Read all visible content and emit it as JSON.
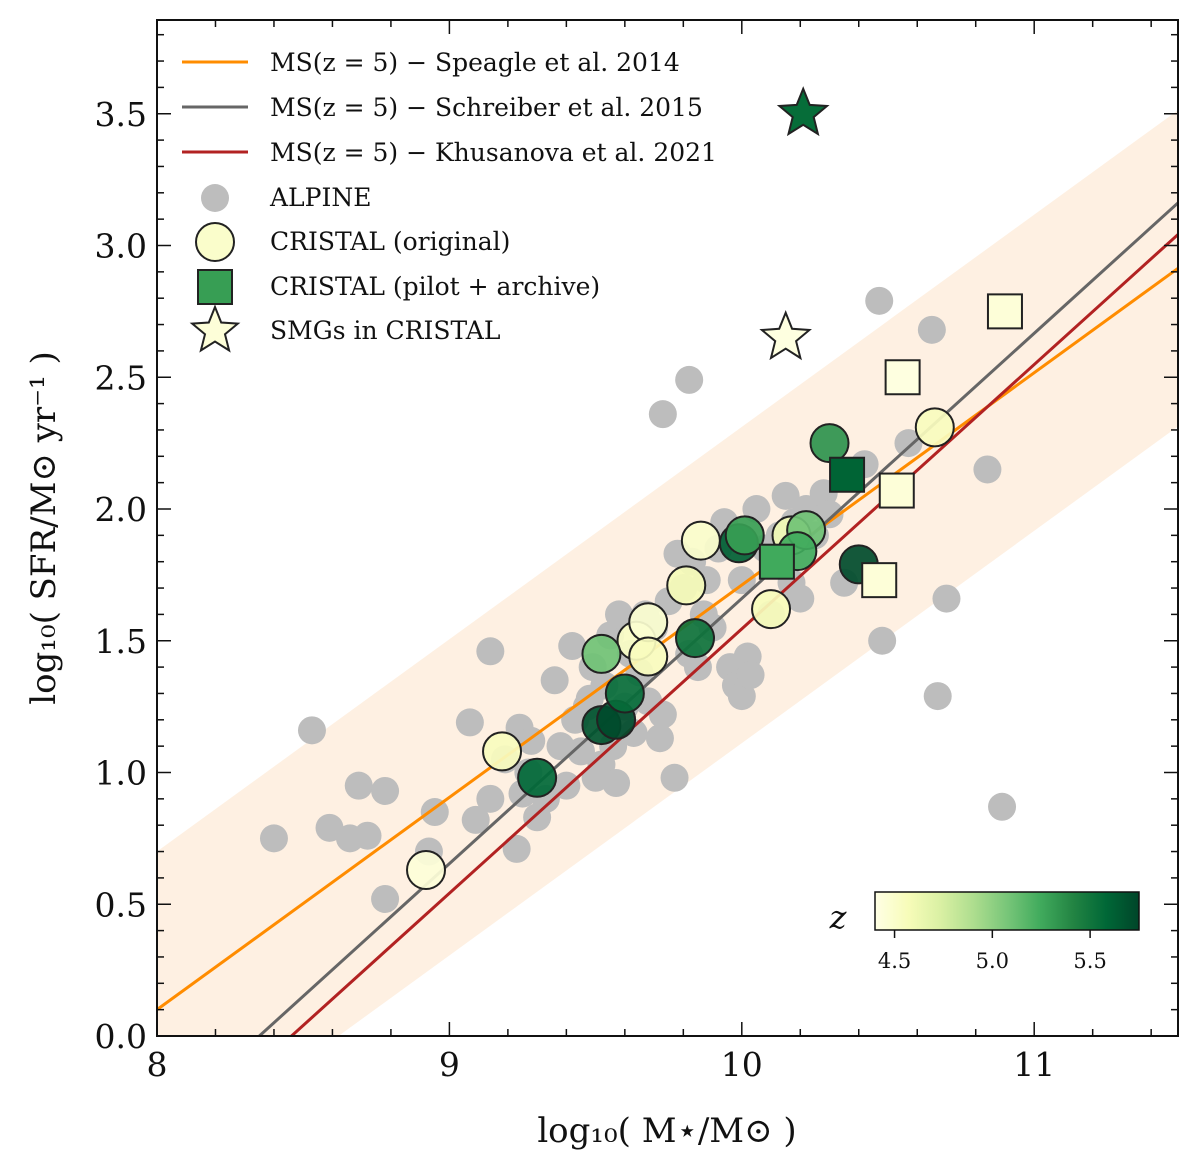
{
  "chart_data": {
    "type": "scatter",
    "xlabel": "log₁₀( M⋆/M⊙ )",
    "ylabel": "log₁₀( SFR/M⊙ yr⁻¹ )",
    "xlim": [
      8,
      11.5
    ],
    "ylim": [
      0,
      3.85
    ],
    "x_ticks": [
      "8",
      "9",
      "10",
      "11"
    ],
    "y_ticks": [
      "0.0",
      "0.5",
      "1.0",
      "1.5",
      "2.0",
      "2.5",
      "3.0",
      "3.5"
    ],
    "legend_position": "top-left",
    "scatter_band": {
      "center_series": "Speagle",
      "half_width_dex": 0.6,
      "color": "#fdebd8"
    },
    "lines": [
      {
        "label": "MS(z = 5)  − Speagle et al. 2014",
        "color": "#ff8c00",
        "points": [
          [
            8,
            0.1
          ],
          [
            11.5,
            2.92
          ]
        ]
      },
      {
        "label": "MS(z = 5)  − Schreiber et al. 2015",
        "color": "#666666",
        "points": [
          [
            8.35,
            0.0
          ],
          [
            11.5,
            3.17
          ]
        ]
      },
      {
        "label": "MS(z = 5)  − Khusanova et al. 2021",
        "color": "#b22222",
        "points": [
          [
            8.46,
            0.0
          ],
          [
            11.5,
            3.05
          ]
        ]
      }
    ],
    "legend_markers": [
      {
        "label": "ALPINE",
        "marker": "circle-gray"
      },
      {
        "label": "CRISTAL (original)",
        "marker": "circle-cristal"
      },
      {
        "label": "CRISTAL (pilot + archive)",
        "marker": "square-cristal"
      },
      {
        "label": "SMGs in CRISTAL",
        "marker": "star-cristal"
      }
    ],
    "colorbar": {
      "label": "z",
      "range": [
        4.4,
        5.75
      ],
      "ticks": [
        "4.5",
        "5.0",
        "5.5"
      ],
      "colormap": [
        "#ffffe5",
        "#f7fcb9",
        "#d9f0a3",
        "#addd8e",
        "#78c679",
        "#41ab5d",
        "#238443",
        "#006837",
        "#004529"
      ]
    },
    "alpine": [
      [
        8.4,
        0.75
      ],
      [
        8.53,
        1.16
      ],
      [
        8.59,
        0.79
      ],
      [
        8.66,
        0.75
      ],
      [
        8.69,
        0.95
      ],
      [
        8.72,
        0.76
      ],
      [
        8.78,
        0.93
      ],
      [
        8.78,
        0.52
      ],
      [
        8.93,
        0.7
      ],
      [
        8.95,
        0.85
      ],
      [
        9.07,
        1.19
      ],
      [
        9.09,
        0.82
      ],
      [
        9.14,
        1.46
      ],
      [
        9.14,
        0.9
      ],
      [
        9.19,
        1.05
      ],
      [
        9.23,
        0.71
      ],
      [
        9.24,
        1.17
      ],
      [
        9.25,
        0.92
      ],
      [
        9.27,
        1.0
      ],
      [
        9.28,
        1.12
      ],
      [
        9.3,
        0.83
      ],
      [
        9.33,
        0.9
      ],
      [
        9.36,
        1.35
      ],
      [
        9.38,
        1.1
      ],
      [
        9.4,
        0.95
      ],
      [
        9.42,
        1.48
      ],
      [
        9.43,
        1.2
      ],
      [
        9.45,
        1.08
      ],
      [
        9.47,
        1.25
      ],
      [
        9.49,
        1.4
      ],
      [
        9.5,
        0.98
      ],
      [
        9.52,
        1.03
      ],
      [
        9.53,
        1.33
      ],
      [
        9.55,
        1.52
      ],
      [
        9.56,
        1.1
      ],
      [
        9.58,
        1.6
      ],
      [
        9.6,
        1.25
      ],
      [
        9.62,
        1.45
      ],
      [
        9.63,
        1.15
      ],
      [
        9.65,
        1.38
      ],
      [
        9.67,
        1.6
      ],
      [
        9.68,
        1.27
      ],
      [
        9.7,
        1.55
      ],
      [
        9.72,
        1.13
      ],
      [
        9.73,
        1.22
      ],
      [
        9.75,
        1.65
      ],
      [
        9.77,
        0.98
      ],
      [
        9.78,
        1.83
      ],
      [
        9.8,
        1.7
      ],
      [
        9.82,
        1.45
      ],
      [
        9.83,
        1.8
      ],
      [
        9.85,
        1.4
      ],
      [
        9.87,
        1.6
      ],
      [
        9.88,
        1.73
      ],
      [
        9.9,
        1.55
      ],
      [
        9.92,
        1.85
      ],
      [
        9.94,
        1.95
      ],
      [
        9.96,
        1.4
      ],
      [
        9.98,
        1.33
      ],
      [
        10.0,
        1.29
      ],
      [
        10.0,
        1.73
      ],
      [
        10.02,
        1.44
      ],
      [
        10.03,
        1.37
      ],
      [
        10.05,
        2.0
      ],
      [
        10.08,
        1.85
      ],
      [
        10.1,
        1.6
      ],
      [
        10.13,
        1.9
      ],
      [
        10.15,
        2.05
      ],
      [
        10.17,
        1.72
      ],
      [
        10.18,
        1.95
      ],
      [
        10.2,
        1.66
      ],
      [
        10.22,
        2.0
      ],
      [
        10.25,
        1.9
      ],
      [
        10.28,
        2.06
      ],
      [
        10.3,
        1.98
      ],
      [
        10.35,
        1.72
      ],
      [
        10.42,
        2.17
      ],
      [
        10.47,
        2.79
      ],
      [
        10.48,
        1.5
      ],
      [
        10.57,
        2.25
      ],
      [
        10.65,
        2.68
      ],
      [
        10.67,
        1.29
      ],
      [
        10.7,
        1.66
      ],
      [
        10.84,
        2.15
      ],
      [
        10.89,
        0.87
      ],
      [
        9.73,
        2.36
      ],
      [
        9.82,
        2.49
      ],
      [
        9.48,
        1.28
      ],
      [
        9.57,
        0.96
      ]
    ],
    "cristal_original": [
      [
        8.92,
        0.63,
        4.45
      ],
      [
        9.18,
        1.08,
        4.55
      ],
      [
        9.64,
        1.5,
        4.52
      ],
      [
        9.68,
        1.57,
        4.48
      ],
      [
        9.68,
        1.44,
        4.55
      ],
      [
        9.81,
        1.71,
        4.58
      ],
      [
        9.86,
        1.88,
        4.5
      ],
      [
        10.1,
        1.62,
        4.56
      ],
      [
        10.17,
        1.9,
        4.6
      ],
      [
        10.66,
        2.31,
        4.55
      ],
      [
        9.52,
        1.45,
        5.1
      ],
      [
        9.3,
        0.98,
        5.58
      ],
      [
        9.52,
        1.18,
        5.68
      ],
      [
        9.57,
        1.2,
        5.72
      ],
      [
        9.6,
        1.3,
        5.55
      ],
      [
        9.84,
        1.51,
        5.52
      ],
      [
        9.99,
        1.87,
        5.62
      ],
      [
        10.01,
        1.9,
        5.3
      ],
      [
        10.22,
        1.92,
        5.1
      ],
      [
        10.3,
        2.25,
        5.35
      ],
      [
        10.4,
        1.79,
        5.72
      ],
      [
        10.19,
        1.84,
        5.25
      ]
    ],
    "cristal_archive": [
      [
        10.12,
        1.8,
        5.25
      ],
      [
        10.36,
        2.13,
        5.6
      ],
      [
        10.47,
        1.73,
        4.45
      ],
      [
        10.53,
        2.07,
        4.45
      ],
      [
        10.55,
        2.5,
        4.42
      ],
      [
        10.9,
        2.75,
        4.45
      ]
    ],
    "smgs": [
      [
        10.21,
        3.5,
        5.55
      ],
      [
        10.15,
        2.65,
        4.42
      ]
    ]
  }
}
